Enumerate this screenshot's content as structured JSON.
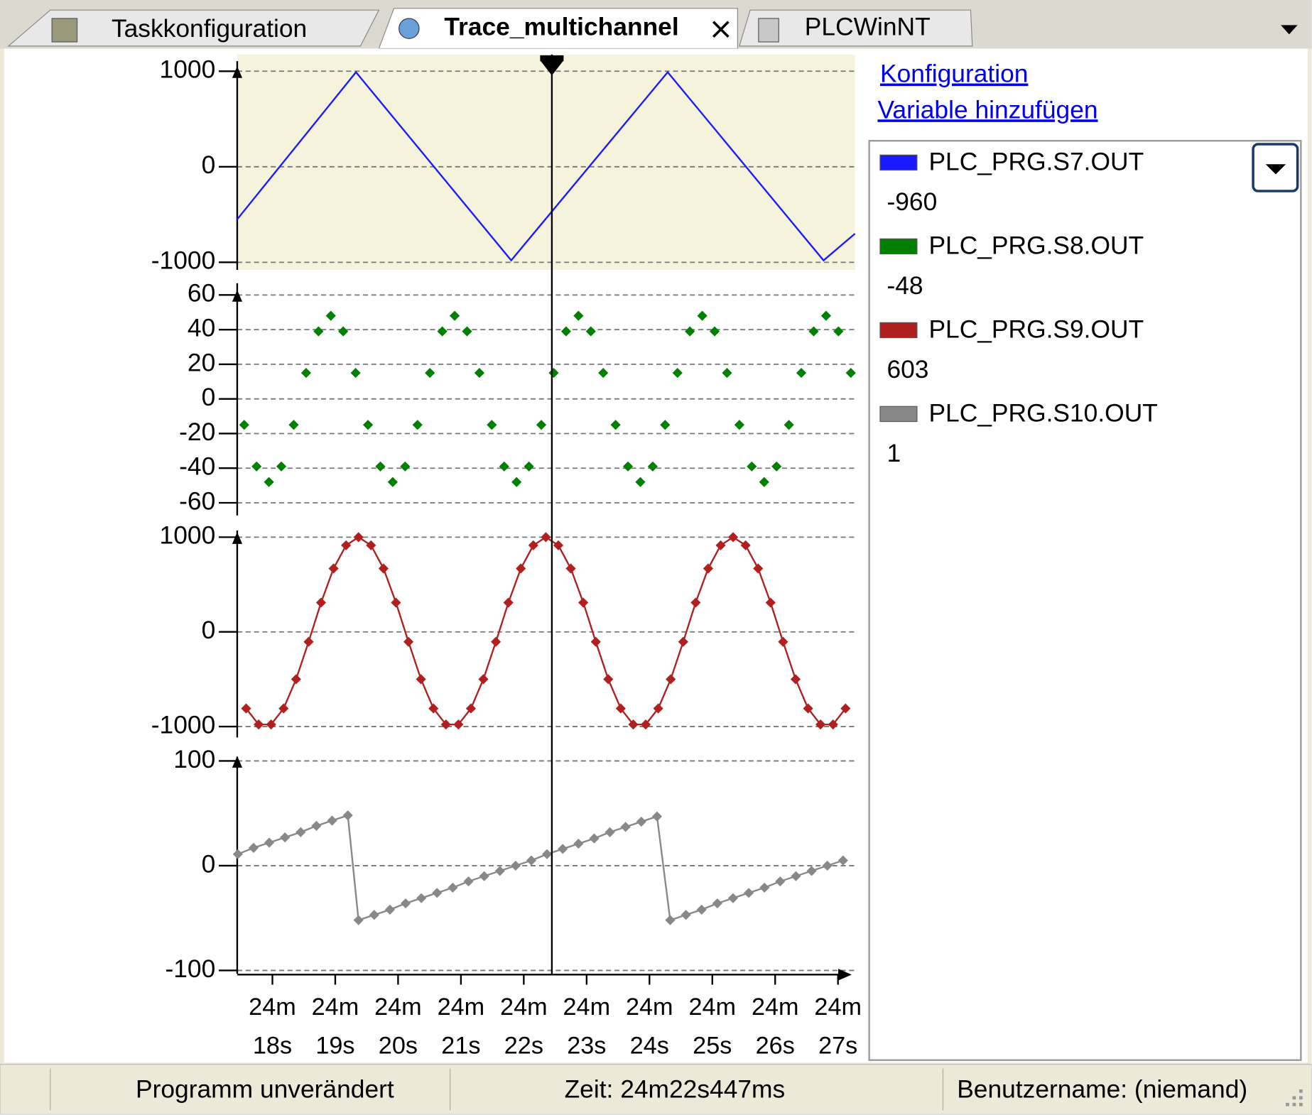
{
  "tabs": [
    "Taskkonfiguration",
    "Trace_multichannel",
    "PLCWinNT"
  ],
  "links": [
    "Konfiguration",
    "Variable hinzufügen"
  ],
  "cursor_values": [
    -960,
    -48,
    603,
    1
  ],
  "cursor_x": 1462.447,
  "status": [
    "Programm unverändert",
    "Zeit: 24m22s447ms",
    "Benutzername: (niemand)"
  ],
  "chart_data": [
    {
      "type": "line",
      "background": "#f6f3dc",
      "grid": true,
      "xlim": [
        1457.44,
        1467.27
      ],
      "ylim": [
        -1000,
        1000
      ],
      "yticks": [
        -1000,
        0,
        1000
      ],
      "x": [
        1457.44,
        1459.33,
        1461.8,
        1464.29,
        1466.77,
        1467.27
      ],
      "series": [
        {
          "name": "PLC_PRG.S7.OUT",
          "color": "#1a1aff",
          "values": [
            -550,
            990,
            -980,
            990,
            -980,
            -700
          ]
        }
      ]
    },
    {
      "type": "scatter",
      "grid": true,
      "xlim": [
        1457.44,
        1467.27
      ],
      "ylim": [
        -60,
        60
      ],
      "yticks": [
        -60,
        -40,
        -20,
        0,
        20,
        40,
        60
      ],
      "x": [
        1457.551,
        1457.748,
        1457.945,
        1458.142,
        1458.339,
        1458.536,
        1458.733,
        1458.93,
        1459.127,
        1459.324,
        1459.521,
        1459.718,
        1459.915,
        1460.112,
        1460.309,
        1460.506,
        1460.703,
        1460.9,
        1461.097,
        1461.294,
        1461.491,
        1461.688,
        1461.885,
        1462.082,
        1462.279,
        1462.476,
        1462.673,
        1462.87,
        1463.067,
        1463.264,
        1463.461,
        1463.658,
        1463.855,
        1464.052,
        1464.249,
        1464.446,
        1464.643,
        1464.84,
        1465.037,
        1465.234,
        1465.431,
        1465.628,
        1465.825,
        1466.022,
        1466.219,
        1466.416,
        1466.613,
        1466.81,
        1467.007,
        1467.204
      ],
      "series": [
        {
          "name": "PLC_PRG.S8.OUT",
          "color": "#008000",
          "values": [
            -15,
            -39,
            -48,
            -39,
            -15,
            15,
            39,
            48,
            39,
            15,
            -15,
            -39,
            -48,
            -39,
            -15,
            15,
            39,
            48,
            39,
            15,
            -15,
            -39,
            -48,
            -39,
            -15,
            15,
            39,
            48,
            39,
            15,
            -15,
            -39,
            -48,
            -39,
            -15,
            15,
            39,
            48,
            39,
            15,
            -15,
            -39,
            -48,
            -39,
            -15,
            15,
            39,
            48,
            39,
            15
          ]
        }
      ]
    },
    {
      "type": "line",
      "marker": "diamond",
      "grid": true,
      "xlim": [
        1457.44,
        1467.27
      ],
      "ylim": [
        -1000,
        1000
      ],
      "yticks": [
        -1000,
        0,
        1000
      ],
      "x": [
        1457.582,
        1457.781,
        1457.979,
        1458.178,
        1458.377,
        1458.576,
        1458.774,
        1458.973,
        1459.172,
        1459.37,
        1459.569,
        1459.768,
        1459.966,
        1460.165,
        1460.364,
        1460.563,
        1460.761,
        1460.96,
        1461.159,
        1461.357,
        1461.556,
        1461.755,
        1461.953,
        1462.152,
        1462.351,
        1462.55,
        1462.748,
        1462.947,
        1463.146,
        1463.344,
        1463.543,
        1463.742,
        1463.94,
        1464.139,
        1464.338,
        1464.537,
        1464.735,
        1464.934,
        1465.133,
        1465.331,
        1465.53,
        1465.729,
        1465.927,
        1466.126,
        1466.325,
        1466.524,
        1466.722,
        1466.921,
        1467.12
      ],
      "series": [
        {
          "name": "PLC_PRG.S9.OUT",
          "color": "#b02020",
          "values": [
            -809,
            -978,
            -978,
            -809,
            -500,
            -105,
            309,
            669,
            914,
            1000,
            914,
            669,
            309,
            -105,
            -500,
            -809,
            -978,
            -978,
            -809,
            -500,
            -105,
            309,
            669,
            914,
            1000,
            914,
            669,
            309,
            -105,
            -500,
            -809,
            -978,
            -978,
            -809,
            -500,
            -105,
            309,
            669,
            914,
            1000,
            914,
            669,
            309,
            -105,
            -500,
            -809,
            -978,
            -978,
            -809
          ]
        }
      ]
    },
    {
      "type": "line",
      "marker": "diamond",
      "grid": true,
      "xlim": [
        1457.44,
        1467.27
      ],
      "ylim": [
        -100,
        100
      ],
      "yticks": [
        -100,
        0,
        100
      ],
      "xticks": [
        {
          "value": 1458,
          "label": "24m 18s"
        },
        {
          "value": 1459,
          "label": "24m 19s"
        },
        {
          "value": 1460,
          "label": "24m 20s"
        },
        {
          "value": 1461,
          "label": "24m 21s"
        },
        {
          "value": 1462,
          "label": "24m 22s"
        },
        {
          "value": 1463,
          "label": "24m 23s"
        },
        {
          "value": 1464,
          "label": "24m 24s"
        },
        {
          "value": 1465,
          "label": "24m 25s"
        },
        {
          "value": 1466,
          "label": "24m 26s"
        },
        {
          "value": 1467,
          "label": "24m 27s"
        }
      ],
      "x": [
        1457.45,
        1457.7,
        1457.95,
        1458.2,
        1458.45,
        1458.7,
        1458.95,
        1459.2,
        1459.37,
        1459.62,
        1459.87,
        1460.12,
        1460.37,
        1460.62,
        1460.87,
        1461.12,
        1461.37,
        1461.62,
        1461.87,
        1462.12,
        1462.37,
        1462.62,
        1462.87,
        1463.12,
        1463.37,
        1463.62,
        1463.87,
        1464.12,
        1464.33,
        1464.58,
        1464.83,
        1465.08,
        1465.33,
        1465.58,
        1465.83,
        1466.08,
        1466.33,
        1466.58,
        1466.83,
        1467.08
      ],
      "series": [
        {
          "name": "PLC_PRG.S10.OUT",
          "color": "#888888",
          "values": [
            11,
            17,
            22,
            27,
            32,
            38,
            43,
            48,
            -52,
            -47,
            -42,
            -36,
            -31,
            -26,
            -21,
            -15,
            -10,
            -5,
            0,
            5,
            11,
            16,
            21,
            26,
            32,
            37,
            42,
            47,
            -52,
            -47,
            -42,
            -36,
            -31,
            -26,
            -21,
            -15,
            -10,
            -5,
            0,
            5
          ]
        }
      ]
    }
  ]
}
